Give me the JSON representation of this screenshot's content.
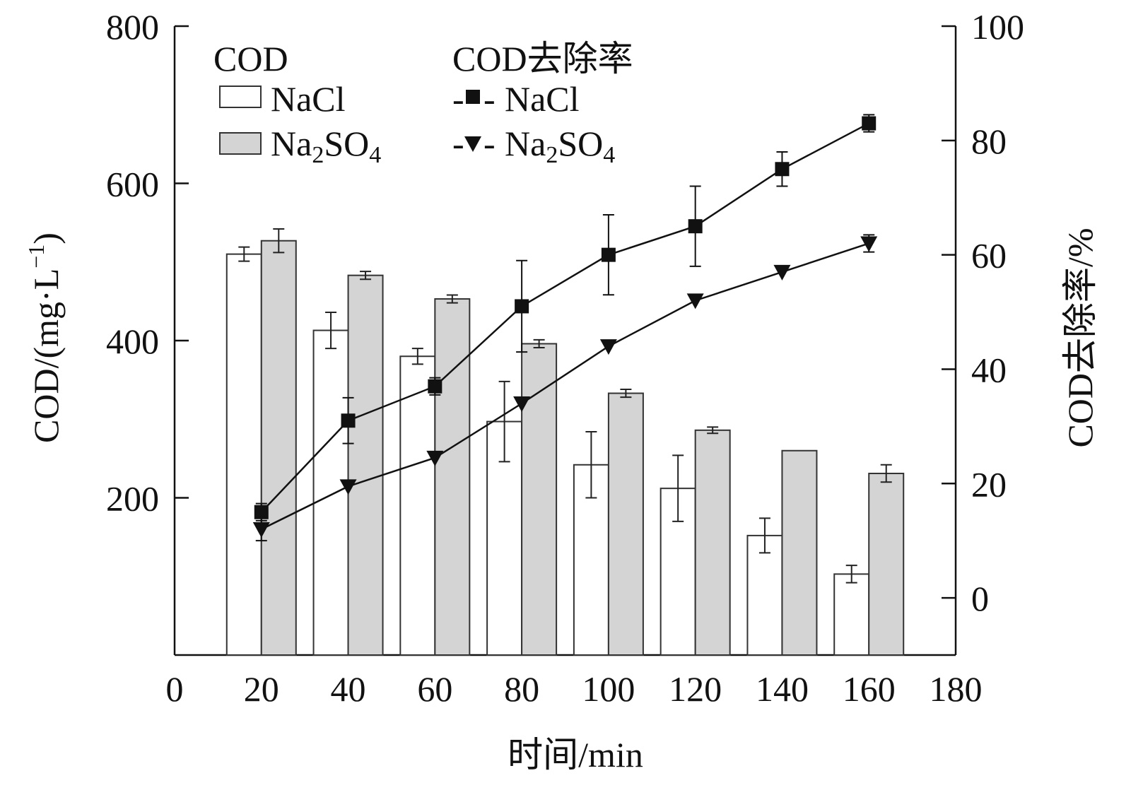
{
  "chart_data": {
    "type": "bar",
    "xlabel": "时间/min",
    "ylabel_left": "COD/(mg·L",
    "ylabel_left_sup": "−1",
    "ylabel_left_close": ")",
    "ylabel_right": "COD去除率/%",
    "xlim": [
      0,
      180
    ],
    "x_ticks": [
      "0",
      "20",
      "40",
      "60",
      "80",
      "100",
      "120",
      "140",
      "160",
      "180"
    ],
    "ylim_left": [
      0,
      800
    ],
    "y_left_ticks": [
      "200",
      "400",
      "600",
      "800"
    ],
    "ylim_right": [
      -10,
      100
    ],
    "y_right_ticks": [
      "0",
      "20",
      "40",
      "60",
      "80",
      "100"
    ],
    "legend": {
      "bar_heading": "COD",
      "line_heading": "COD去除率",
      "nacl": "NaCl",
      "na2so4_prefix": "Na",
      "na2so4_sub1": "2",
      "na2so4_mid": "SO",
      "na2so4_sub2": "4",
      "nacl_line_prefix": "-",
      "nacl_line_suffix": "-",
      "na2so4_line_prefix": "-",
      "na2so4_line_suffix": "-"
    },
    "categories": [
      20,
      40,
      60,
      80,
      100,
      120,
      140,
      160
    ],
    "bar_series": [
      {
        "name": "NaCl",
        "color": "#ffffff",
        "values": [
          510,
          413,
          380,
          297,
          242,
          212,
          152,
          103
        ],
        "errors": [
          9,
          23,
          10,
          51,
          42,
          42,
          22,
          11
        ]
      },
      {
        "name": "Na2SO4",
        "color": "#d4d4d4",
        "values": [
          527,
          483,
          453,
          396,
          333,
          286,
          260,
          231
        ],
        "errors": [
          15,
          5,
          5,
          5,
          5,
          4,
          0,
          11
        ]
      }
    ],
    "line_series": [
      {
        "name": "NaCl",
        "marker": "square",
        "values": [
          15,
          31,
          37,
          51,
          60,
          65,
          75,
          83
        ],
        "errors": [
          1.5,
          4,
          1.5,
          8,
          7,
          7,
          3,
          1.5
        ]
      },
      {
        "name": "Na2SO4",
        "marker": "triangle-down",
        "values": [
          12,
          19.5,
          24.5,
          34,
          44,
          52,
          57,
          62
        ],
        "errors": [
          2,
          0,
          0,
          0,
          0,
          0,
          0,
          1.5
        ]
      }
    ]
  }
}
